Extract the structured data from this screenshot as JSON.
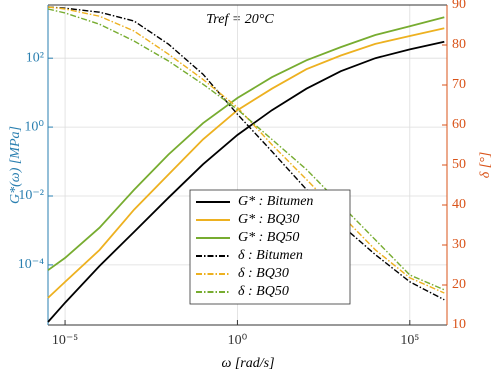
{
  "chart_data": {
    "type": "line",
    "annotation": "Tref = 20°C",
    "xlabel": "ω [rad/s]",
    "ylabel": "G*(ω) [MPa]",
    "y2label": "δ [°]",
    "xlog": true,
    "ylog": true,
    "grid": true,
    "legend": "center",
    "left_axis_color": "#2a7fb0",
    "right_axis_color": "#d95319",
    "xlim": [
      3.2e-06,
      1200000.0
    ],
    "ylim": [
      1.8e-06,
      3500
    ],
    "y2lim": [
      10,
      90
    ],
    "xticks": [
      {
        "value": 1e-05,
        "label": "10⁻⁵"
      },
      {
        "value": 1,
        "label": "10⁰"
      },
      {
        "value": 100000,
        "label": "10⁵"
      }
    ],
    "yticks": [
      {
        "value": 0.0001,
        "label": "10⁻⁴"
      },
      {
        "value": 0.01,
        "label": "10⁻²"
      },
      {
        "value": 1,
        "label": "10⁰"
      },
      {
        "value": 100,
        "label": "10²"
      }
    ],
    "y2ticks": [
      10,
      20,
      30,
      40,
      50,
      60,
      70,
      80,
      90
    ],
    "x": [
      3.2e-06,
      1e-05,
      0.0001,
      0.001,
      0.01,
      0.1,
      1,
      10,
      100,
      1000,
      10000,
      100000,
      1000000
    ],
    "series": [
      {
        "name": "G* : Bitumen",
        "color": "#000000",
        "linestyle": "solid",
        "values": [
          2.2e-06,
          8e-06,
          9.3e-05,
          0.0009,
          0.0089,
          0.083,
          0.59,
          3.1,
          13,
          42,
          100,
          180,
          300
        ]
      },
      {
        "name": "G* : BQ30",
        "color": "#edb120",
        "linestyle": "solid",
        "values": [
          1.1e-05,
          3.2e-05,
          0.00027,
          0.004,
          0.042,
          0.44,
          3.1,
          13,
          48,
          120,
          260,
          440,
          740
        ]
      },
      {
        "name": "G* : BQ50",
        "color": "#77ac30",
        "linestyle": "solid",
        "values": [
          7e-05,
          0.00016,
          0.0012,
          0.015,
          0.16,
          1.3,
          7,
          28,
          87,
          210,
          470,
          850,
          1550
        ]
      },
      {
        "name": "δ : Bitumen",
        "color": "#000000",
        "linestyle": "dashdot",
        "axis": "y2",
        "values": [
          89.5,
          89.2,
          88.2,
          86,
          80.2,
          72.7,
          62.7,
          53.4,
          43.9,
          35.1,
          27.6,
          20.8,
          16.3
        ]
      },
      {
        "name": "δ : BQ30",
        "color": "#edb120",
        "linestyle": "dashdot",
        "axis": "y2",
        "values": [
          89.5,
          89,
          87.2,
          83.5,
          77.7,
          71.4,
          64.4,
          55.1,
          46.4,
          37.6,
          28.8,
          21.8,
          18
        ]
      },
      {
        "name": "δ : BQ50",
        "color": "#77ac30",
        "linestyle": "dashdot",
        "axis": "y2",
        "values": [
          89,
          88,
          85.2,
          81,
          76,
          70.2,
          63.9,
          56.4,
          48.9,
          40.1,
          31.3,
          22.5,
          18.8
        ]
      }
    ]
  }
}
